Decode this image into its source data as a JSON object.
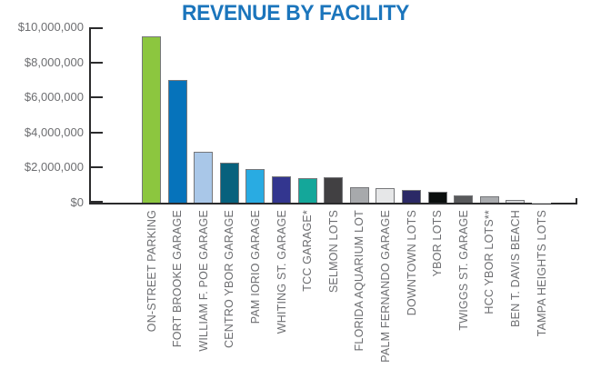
{
  "title": {
    "text": "REVENUE BY FACILITY",
    "color": "#1B75BC"
  },
  "chart_data": {
    "type": "bar",
    "title": "REVENUE BY FACILITY",
    "xlabel": "",
    "ylabel": "",
    "ylim": [
      0,
      10000000
    ],
    "ytick_step": 2000000,
    "ytick_labels": [
      "$0",
      "$2,000,000",
      "$4,000,000",
      "$6,000,000",
      "$8,000,000",
      "$10,000,000"
    ],
    "grid": false,
    "legend": false,
    "categories": [
      "ON-STREET PARKING",
      "FORT BROOKE GARAGE",
      "WILLIAM F. POE GARAGE",
      "CENTRO YBOR GARAGE",
      "PAM IORIO GARAGE",
      "WHITING ST. GARAGE",
      "TCC GARAGE*",
      "SELMON LOTS",
      "FLORIDA AQUARIUM LOT",
      "PALM FERNANDO GARAGE",
      "DOWNTOWN LOTS",
      "YBOR LOTS",
      "TWIGGS ST. GARAGE",
      "HCC YBOR LOTS**",
      "BEN T. DAVIS BEACH",
      "TAMPA HEIGHTS LOTS"
    ],
    "values": [
      9500000,
      7000000,
      2900000,
      2300000,
      1900000,
      1500000,
      1400000,
      1450000,
      900000,
      850000,
      700000,
      600000,
      400000,
      350000,
      150000,
      15000
    ],
    "bar_colors": [
      "#8CC63F",
      "#0673BB",
      "#A9C7E8",
      "#07617D",
      "#29ABE2",
      "#33368F",
      "#14A79A",
      "#414042",
      "#A7A9AC",
      "#E6E7E8",
      "#2B2966",
      "#0B0F0E",
      "#58595B",
      "#A9ABAE",
      "#D7D8DA",
      "#D1D3D4"
    ]
  },
  "style": {
    "axis_color": "#2B2B2C",
    "tick_label_color": "#6D6E71",
    "bar_border_color": "#76777A",
    "background": "#FFFFFF"
  }
}
